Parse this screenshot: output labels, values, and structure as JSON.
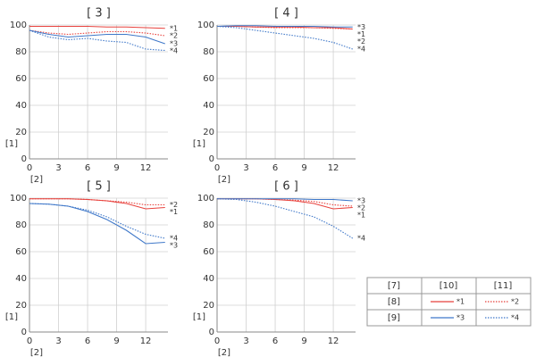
{
  "chart_data": [
    {
      "type": "line",
      "title": "[ 3 ]",
      "ylabel": "[1]",
      "xlabel": "[2]",
      "x": [
        0,
        2,
        4,
        6,
        8,
        10,
        12,
        14
      ],
      "xlim": [
        0,
        14.3
      ],
      "ylim": [
        0,
        100
      ],
      "xticks": [
        0,
        3,
        6,
        9,
        12
      ],
      "yticks": [
        0,
        20,
        40,
        60,
        80,
        100
      ],
      "grid": true,
      "series": [
        {
          "name": "*1",
          "color": "#e8413c",
          "style": "solid",
          "values": [
            99,
            99,
            99,
            99,
            98.5,
            98.5,
            98,
            97.5
          ]
        },
        {
          "name": "*2",
          "color": "#e8413c",
          "style": "dotted",
          "values": [
            96,
            94,
            93,
            94,
            95,
            95,
            94,
            92
          ]
        },
        {
          "name": "*3",
          "color": "#3f78c9",
          "style": "solid",
          "values": [
            96,
            93,
            91,
            92,
            93,
            93,
            91,
            86
          ]
        },
        {
          "name": "*4",
          "color": "#3f78c9",
          "style": "dotted",
          "values": [
            96,
            91,
            89,
            90,
            88,
            87,
            82,
            81
          ]
        }
      ]
    },
    {
      "type": "line",
      "title": "[ 4 ]",
      "ylabel": "[1]",
      "xlabel": "[2]",
      "x": [
        0,
        2,
        4,
        6,
        8,
        10,
        12,
        14
      ],
      "xlim": [
        0,
        14.3
      ],
      "ylim": [
        0,
        100
      ],
      "xticks": [
        0,
        3,
        6,
        9,
        12
      ],
      "yticks": [
        0,
        20,
        40,
        60,
        80,
        100
      ],
      "grid": true,
      "series": [
        {
          "name": "*1",
          "color": "#e8413c",
          "style": "solid",
          "values": [
            99,
            99,
            98.5,
            98.5,
            98.5,
            98,
            98,
            97
          ]
        },
        {
          "name": "*2",
          "color": "#e8413c",
          "style": "dotted",
          "values": [
            99,
            99,
            98.5,
            98,
            98,
            98,
            97.5,
            97
          ]
        },
        {
          "name": "*3",
          "color": "#3f78c9",
          "style": "solid",
          "values": [
            99,
            99.5,
            99.5,
            99,
            99,
            99,
            98.5,
            98.5
          ]
        },
        {
          "name": "*4",
          "color": "#3f78c9",
          "style": "dotted",
          "values": [
            99,
            98,
            96,
            94,
            92,
            90,
            87,
            82
          ]
        }
      ]
    },
    {
      "type": "line",
      "title": "[ 5 ]",
      "ylabel": "[1]",
      "xlabel": "[2]",
      "x": [
        0,
        2,
        4,
        6,
        8,
        10,
        12,
        14
      ],
      "xlim": [
        0,
        14.3
      ],
      "ylim": [
        0,
        100
      ],
      "xticks": [
        0,
        3,
        6,
        9,
        12
      ],
      "yticks": [
        0,
        20,
        40,
        60,
        80,
        100
      ],
      "grid": true,
      "series": [
        {
          "name": "*1",
          "color": "#e8413c",
          "style": "solid",
          "values": [
            99.5,
            99.5,
            99.5,
            99,
            98,
            96,
            92,
            93
          ]
        },
        {
          "name": "*2",
          "color": "#e8413c",
          "style": "dotted",
          "values": [
            99.5,
            99.5,
            99.5,
            99,
            98,
            97,
            95,
            95
          ]
        },
        {
          "name": "*3",
          "color": "#3f78c9",
          "style": "solid",
          "values": [
            96,
            95.5,
            94,
            90,
            84,
            76,
            66,
            67
          ]
        },
        {
          "name": "*4",
          "color": "#3f78c9",
          "style": "dotted",
          "values": [
            96,
            95.5,
            94,
            91,
            86,
            79,
            73,
            70
          ]
        }
      ]
    },
    {
      "type": "line",
      "title": "[ 6 ]",
      "ylabel": "[1]",
      "xlabel": "[2]",
      "x": [
        0,
        2,
        4,
        6,
        8,
        10,
        12,
        14
      ],
      "xlim": [
        0,
        14.3
      ],
      "ylim": [
        0,
        100
      ],
      "xticks": [
        0,
        3,
        6,
        9,
        12
      ],
      "yticks": [
        0,
        20,
        40,
        60,
        80,
        100
      ],
      "grid": true,
      "series": [
        {
          "name": "*1",
          "color": "#e8413c",
          "style": "solid",
          "values": [
            99.5,
            99.5,
            99.5,
            99,
            98,
            96,
            92,
            93
          ]
        },
        {
          "name": "*2",
          "color": "#e8413c",
          "style": "dotted",
          "values": [
            99.5,
            99.5,
            99.5,
            99,
            98.5,
            97.5,
            95,
            94
          ]
        },
        {
          "name": "*3",
          "color": "#3f78c9",
          "style": "solid",
          "values": [
            99.5,
            99.5,
            99.5,
            99.5,
            99.5,
            99,
            99,
            98
          ]
        },
        {
          "name": "*4",
          "color": "#3f78c9",
          "style": "dotted",
          "values": [
            99.5,
            99,
            97,
            94,
            90,
            86,
            79,
            70
          ]
        }
      ]
    }
  ],
  "legend_table": {
    "header": [
      "[7]",
      "[10]",
      "[11]"
    ],
    "rows": [
      "[8]",
      "[9]"
    ]
  }
}
